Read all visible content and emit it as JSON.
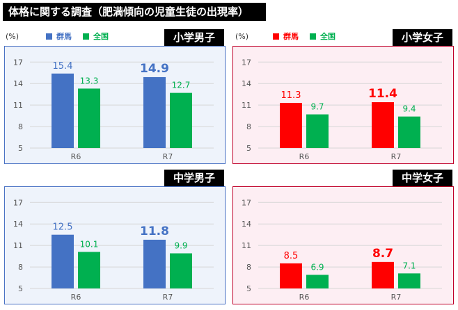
{
  "title": "体格に関する調査（肥満傾向の児童生徒の出現率）",
  "unit_label": "(%)",
  "colors": {
    "gunma_boys": "#4472c4",
    "gunma_girls": "#ff0000",
    "national": "#00b050"
  },
  "legend": {
    "left": [
      {
        "label": "群馬",
        "color": "#4472c4"
      },
      {
        "label": "全国",
        "color": "#00b050"
      }
    ],
    "right": [
      {
        "label": "群馬",
        "color": "#ff0000"
      },
      {
        "label": "全国",
        "color": "#00b050"
      }
    ]
  },
  "panels": {
    "p1": {
      "label": "小学男子"
    },
    "p2": {
      "label": "小学女子"
    },
    "p3": {
      "label": "中学男子"
    },
    "p4": {
      "label": "中学女子"
    }
  },
  "chart_data": [
    {
      "type": "bar",
      "title": "小学男子",
      "categories": [
        "R6",
        "R7"
      ],
      "series": [
        {
          "name": "群馬",
          "values": [
            15.4,
            14.9
          ],
          "color": "#4472c4"
        },
        {
          "name": "全国",
          "values": [
            13.3,
            12.7
          ],
          "color": "#00b050"
        }
      ],
      "yticks": [
        5,
        8,
        11,
        14,
        17
      ],
      "ylim": [
        5,
        18
      ],
      "highlight": "R7",
      "grid": true
    },
    {
      "type": "bar",
      "title": "小学女子",
      "categories": [
        "R6",
        "R7"
      ],
      "series": [
        {
          "name": "群馬",
          "values": [
            11.3,
            11.4
          ],
          "color": "#ff0000"
        },
        {
          "name": "全国",
          "values": [
            9.7,
            9.4
          ],
          "color": "#00b050"
        }
      ],
      "yticks": [
        5,
        8,
        11,
        14,
        17
      ],
      "ylim": [
        5,
        18
      ],
      "highlight": "R7",
      "grid": true
    },
    {
      "type": "bar",
      "title": "中学男子",
      "categories": [
        "R6",
        "R7"
      ],
      "series": [
        {
          "name": "群馬",
          "values": [
            12.5,
            11.8
          ],
          "color": "#4472c4"
        },
        {
          "name": "全国",
          "values": [
            10.1,
            9.9
          ],
          "color": "#00b050"
        }
      ],
      "yticks": [
        5,
        8,
        11,
        14,
        17
      ],
      "ylim": [
        5,
        18
      ],
      "highlight": "R7",
      "grid": true
    },
    {
      "type": "bar",
      "title": "中学女子",
      "categories": [
        "R6",
        "R7"
      ],
      "series": [
        {
          "name": "群馬",
          "values": [
            8.5,
            8.7
          ],
          "color": "#ff0000"
        },
        {
          "name": "全国",
          "values": [
            6.9,
            7.1
          ],
          "color": "#00b050"
        }
      ],
      "yticks": [
        5,
        8,
        11,
        14,
        17
      ],
      "ylim": [
        5,
        18
      ],
      "highlight": "R7",
      "grid": true
    }
  ]
}
